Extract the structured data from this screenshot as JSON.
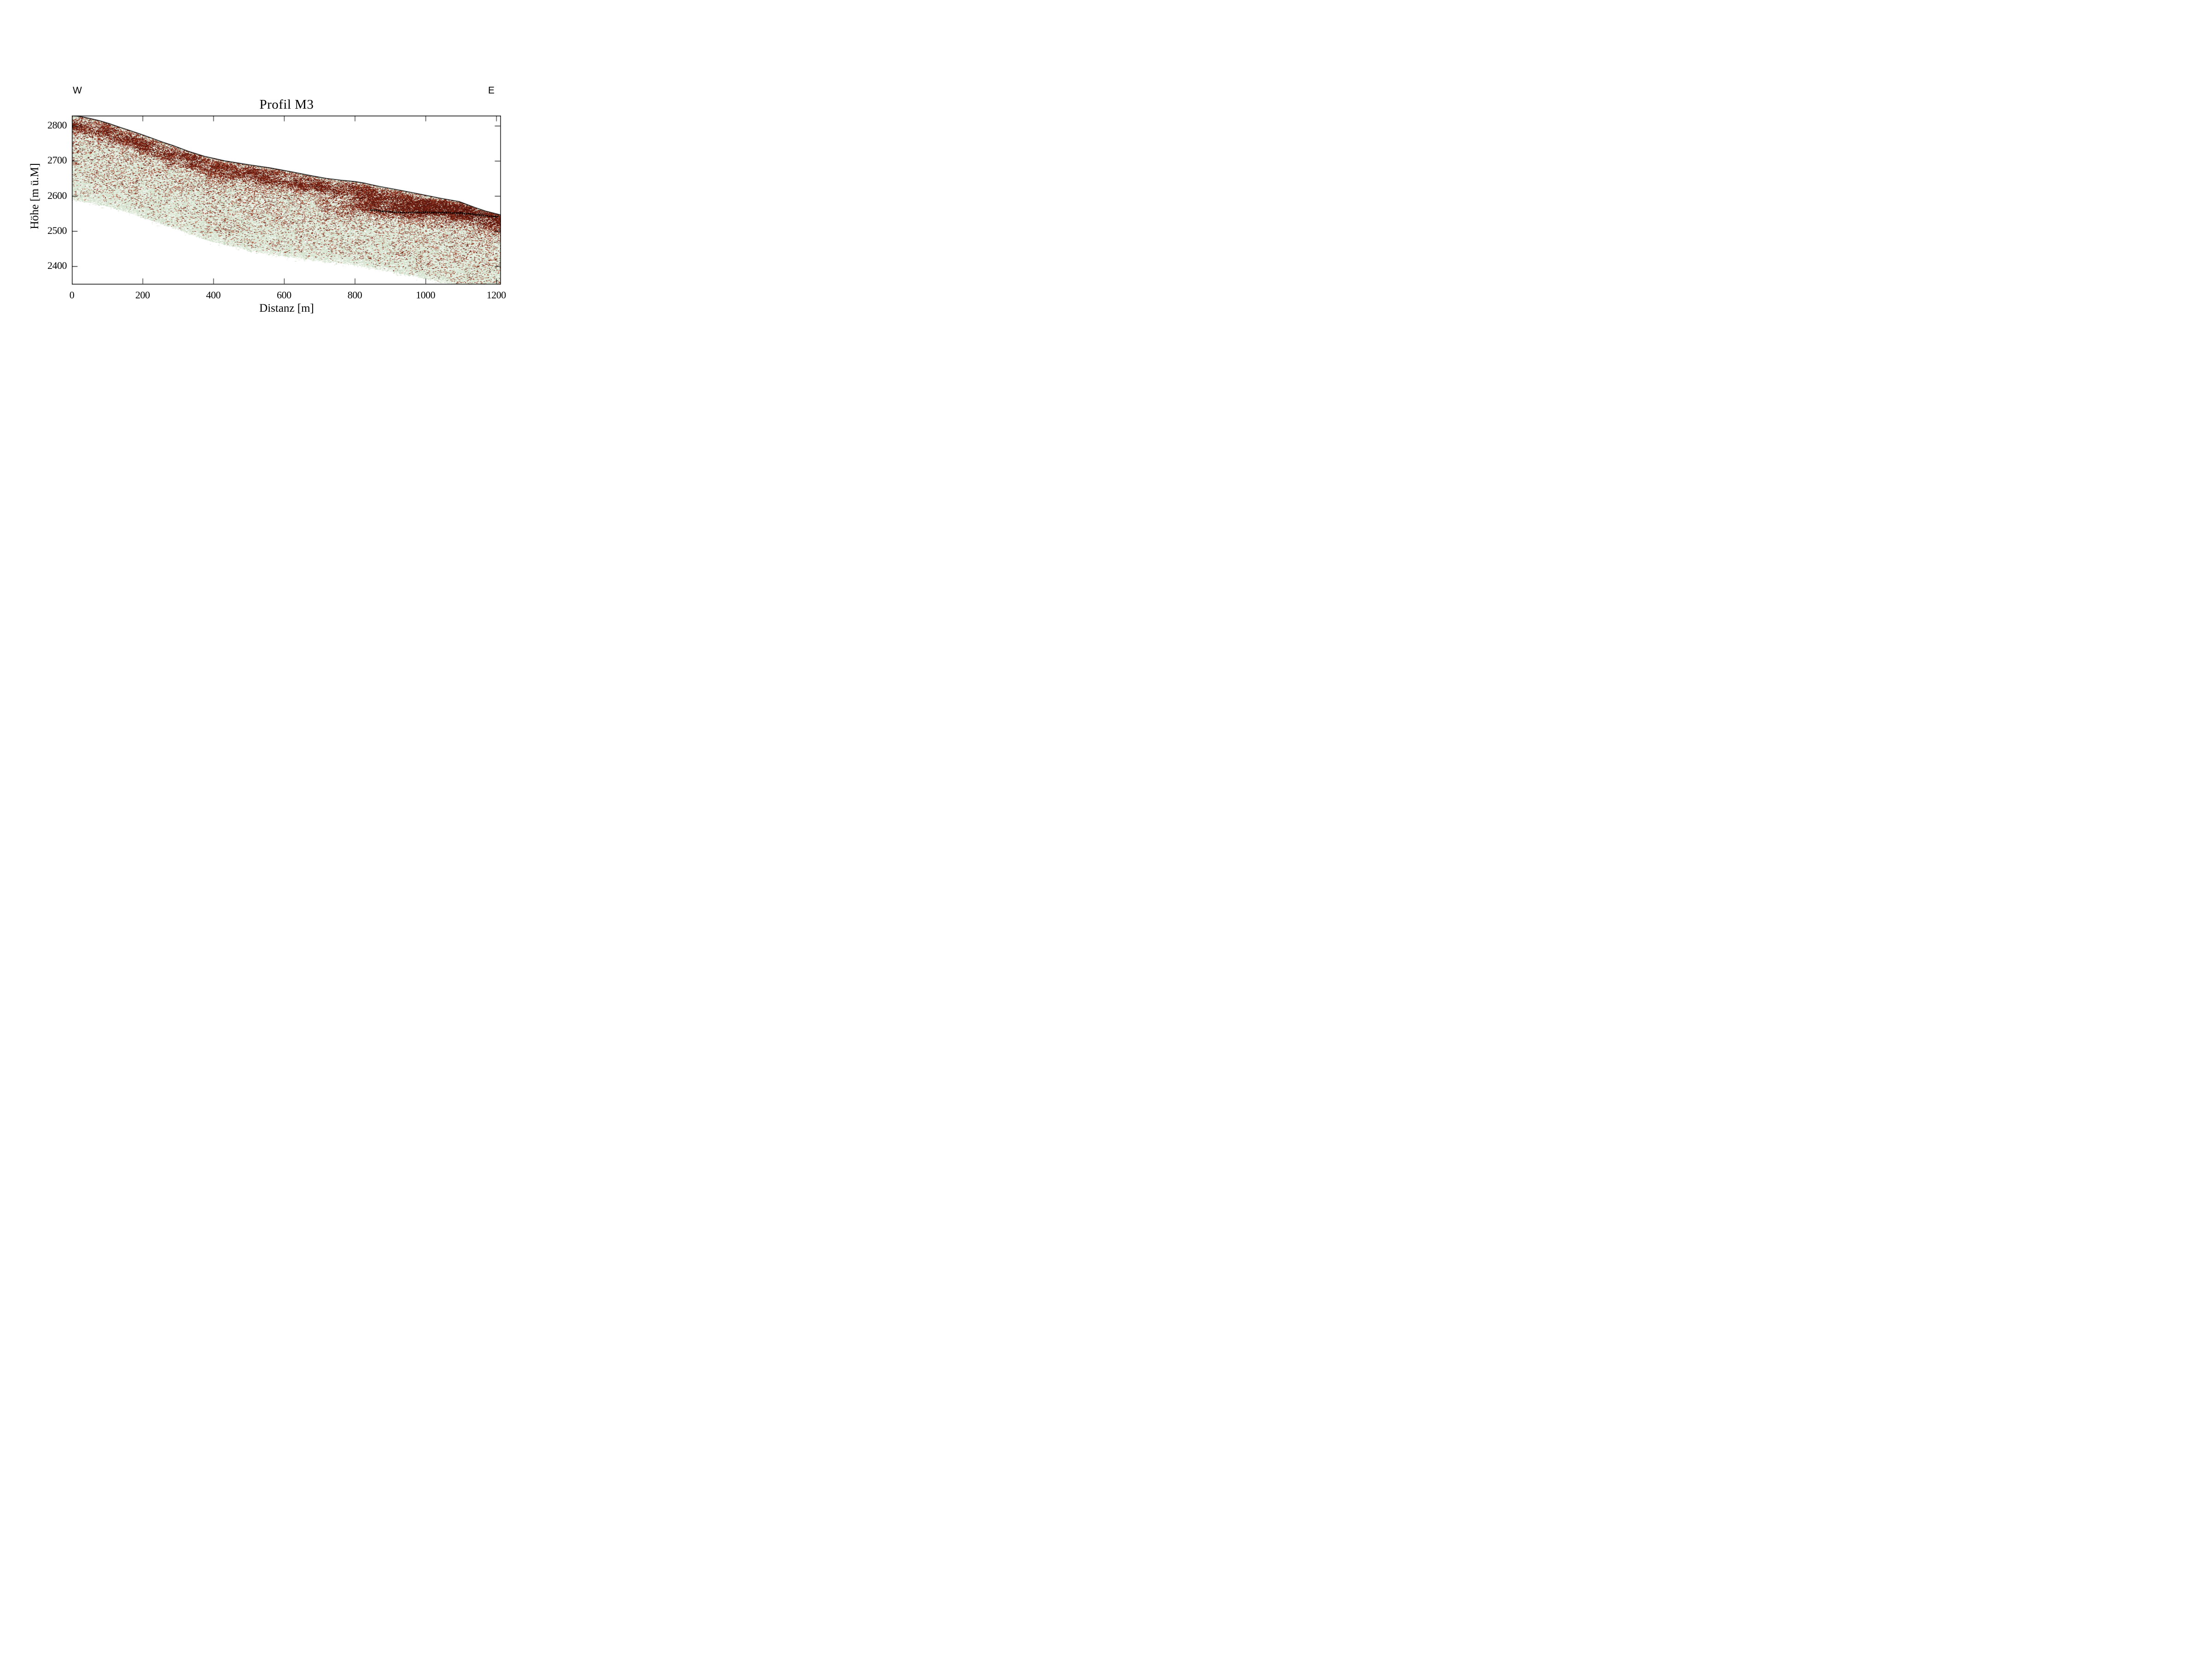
{
  "chart_data": {
    "type": "heatmap",
    "title": "Profil M3",
    "xlabel": "Distanz [m]",
    "ylabel": "Höhe [m ü.M]",
    "orientation": {
      "left": "W",
      "right": "E"
    },
    "x_ticks": [
      0,
      200,
      400,
      600,
      800,
      1000,
      1200
    ],
    "y_ticks": [
      2400,
      2500,
      2600,
      2700,
      2800
    ],
    "xlim": [
      0,
      1212
    ],
    "ylim": [
      2349,
      2829
    ],
    "grid": false,
    "legend": "none",
    "tick_style": "inward on all four sides",
    "surface_elevation_m": [
      [
        0,
        2829
      ],
      [
        25,
        2826
      ],
      [
        50,
        2821
      ],
      [
        80,
        2814
      ],
      [
        106,
        2806
      ],
      [
        135,
        2796
      ],
      [
        165,
        2786
      ],
      [
        195,
        2776
      ],
      [
        225,
        2765
      ],
      [
        255,
        2754
      ],
      [
        285,
        2744
      ],
      [
        330,
        2727
      ],
      [
        375,
        2713
      ],
      [
        432,
        2700
      ],
      [
        500,
        2689
      ],
      [
        560,
        2680
      ],
      [
        620,
        2669
      ],
      [
        680,
        2657
      ],
      [
        720,
        2650
      ],
      [
        760,
        2645
      ],
      [
        800,
        2641
      ],
      [
        830,
        2636
      ],
      [
        870,
        2627
      ],
      [
        930,
        2616
      ],
      [
        990,
        2604
      ],
      [
        1045,
        2593
      ],
      [
        1095,
        2584
      ],
      [
        1140,
        2567
      ],
      [
        1170,
        2557
      ],
      [
        1201,
        2549
      ],
      [
        1212,
        2546
      ]
    ],
    "bed_boundary_m": [
      [
        0,
        2587
      ],
      [
        52,
        2581
      ],
      [
        95,
        2572
      ],
      [
        138,
        2560
      ],
      [
        160,
        2553
      ],
      [
        220,
        2532
      ],
      [
        290,
        2508
      ],
      [
        382,
        2474
      ],
      [
        444,
        2459
      ],
      [
        508,
        2443
      ],
      [
        540,
        2438
      ],
      [
        600,
        2429
      ],
      [
        660,
        2420
      ],
      [
        734,
        2411
      ],
      [
        799,
        2404
      ],
      [
        863,
        2392
      ],
      [
        900,
        2385
      ],
      [
        960,
        2373
      ],
      [
        1020,
        2360
      ],
      [
        1073,
        2349
      ],
      [
        1212,
        2349
      ]
    ],
    "dashed_reflector_m": [
      [
        846,
        2560
      ],
      [
        880,
        2556
      ],
      [
        930,
        2553
      ],
      [
        1000,
        2553
      ],
      [
        1060,
        2552
      ],
      [
        1100,
        2551
      ],
      [
        1154,
        2546
      ],
      [
        1197,
        2541
      ],
      [
        1204,
        2540
      ]
    ],
    "quiet_patch": {
      "center_x_m": 300,
      "center_elev_m": 2586,
      "radius_x_m": 80,
      "radius_elev_m": 30
    },
    "colors": {
      "background": "#ffffff",
      "ink": "#000000",
      "glacier_base": "#d9e5d3",
      "pale_palette": [
        "#cfdec9",
        "#dde9d7",
        "#e9f1e3",
        "#f4f8f0",
        "#ffffff",
        "#c3d6bd"
      ],
      "red_palette": [
        "#4e130c",
        "#641a10",
        "#7a2415",
        "#8f301c",
        "#a2452e",
        "#b05c44"
      ]
    }
  }
}
